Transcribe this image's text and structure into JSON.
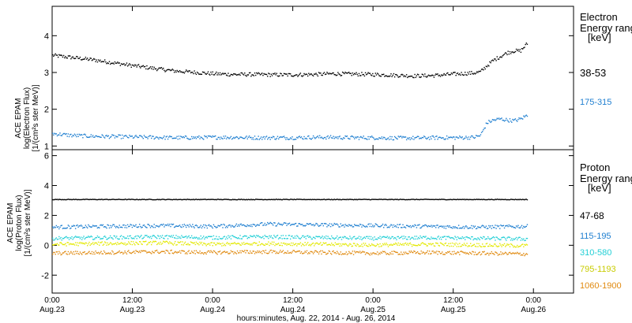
{
  "chart_data": [
    {
      "type": "scatter",
      "ylabel_lines": [
        "ACE EPAM",
        "log(Electron Flux)",
        "[1/(cm²s ster MeV)]"
      ],
      "ylim": [
        0.9,
        4.8
      ],
      "yticks": [
        1,
        2,
        3,
        4
      ],
      "legend_title": [
        "Electron",
        "Energy range",
        "[keV]"
      ],
      "series": [
        {
          "name": "38-53",
          "color": "#000000",
          "x": [
            0,
            3,
            6,
            9,
            12,
            15,
            18,
            21,
            24,
            27,
            30,
            33,
            36,
            39,
            42,
            45,
            48,
            51,
            54,
            57,
            60,
            63,
            64,
            65,
            66,
            67,
            68,
            69,
            70,
            71
          ],
          "y": [
            3.48,
            3.42,
            3.36,
            3.28,
            3.2,
            3.13,
            3.06,
            3.02,
            2.98,
            2.96,
            2.96,
            2.95,
            2.95,
            2.96,
            2.98,
            2.97,
            2.96,
            2.94,
            2.92,
            2.93,
            2.97,
            3.0,
            3.03,
            3.2,
            3.35,
            3.45,
            3.55,
            3.6,
            3.6,
            3.8
          ]
        },
        {
          "name": "175-315",
          "color": "#1f7fd0",
          "x": [
            0,
            3,
            6,
            9,
            12,
            15,
            18,
            21,
            24,
            27,
            30,
            33,
            36,
            39,
            42,
            45,
            48,
            51,
            54,
            57,
            60,
            63,
            64,
            65,
            66,
            67,
            68,
            69,
            70,
            71
          ],
          "y": [
            1.35,
            1.3,
            1.28,
            1.27,
            1.26,
            1.25,
            1.24,
            1.24,
            1.25,
            1.25,
            1.24,
            1.24,
            1.24,
            1.25,
            1.25,
            1.24,
            1.24,
            1.23,
            1.23,
            1.24,
            1.24,
            1.25,
            1.3,
            1.65,
            1.72,
            1.75,
            1.72,
            1.7,
            1.75,
            1.85
          ]
        }
      ]
    },
    {
      "type": "scatter",
      "ylabel_lines": [
        "ACE EPAM",
        "log(Proton Flux)",
        "[1/(cm²s ster MeV)]"
      ],
      "ylim": [
        -3.2,
        6.4
      ],
      "yticks": [
        -2,
        0,
        2,
        4,
        6
      ],
      "legend_title": [
        "Proton",
        "Energy range",
        "[keV]"
      ],
      "series": [
        {
          "name": "47-68",
          "color": "#000000",
          "x": [
            0,
            71
          ],
          "y": [
            3.1,
            3.1
          ]
        },
        {
          "name": "115-195",
          "color": "#1f7fd0",
          "x": [
            0,
            8,
            16,
            24,
            32,
            40,
            48,
            56,
            64,
            71
          ],
          "y": [
            1.25,
            1.3,
            1.35,
            1.3,
            1.45,
            1.4,
            1.35,
            1.3,
            1.25,
            1.3
          ]
        },
        {
          "name": "310-580",
          "color": "#22cfd6",
          "x": [
            0,
            8,
            16,
            24,
            32,
            40,
            48,
            56,
            64,
            71
          ],
          "y": [
            0.5,
            0.55,
            0.6,
            0.55,
            0.6,
            0.55,
            0.5,
            0.55,
            0.5,
            0.45
          ]
        },
        {
          "name": "795-1193",
          "color": "#e3e800",
          "x": [
            0,
            8,
            16,
            24,
            32,
            40,
            48,
            56,
            64,
            71
          ],
          "y": [
            0.1,
            0.15,
            0.2,
            0.1,
            0.15,
            0.1,
            0.05,
            0.1,
            0.05,
            0.0
          ]
        },
        {
          "name": "1060-1900",
          "color": "#e08a10",
          "x": [
            0,
            8,
            16,
            24,
            32,
            40,
            48,
            56,
            64,
            71
          ],
          "y": [
            -0.5,
            -0.45,
            -0.4,
            -0.45,
            -0.4,
            -0.45,
            -0.5,
            -0.45,
            -0.5,
            -0.55
          ]
        }
      ]
    }
  ],
  "x_axis": {
    "xlim": [
      0,
      78
    ],
    "ticks": [
      {
        "x": 0,
        "line1": "0:00",
        "line2": "Aug.23"
      },
      {
        "x": 12,
        "line1": "12:00",
        "line2": "Aug.23"
      },
      {
        "x": 24,
        "line1": "0:00",
        "line2": "Aug.24"
      },
      {
        "x": 36,
        "line1": "12:00",
        "line2": "Aug.24"
      },
      {
        "x": 48,
        "line1": "0:00",
        "line2": "Aug.25"
      },
      {
        "x": 60,
        "line1": "12:00",
        "line2": "Aug.25"
      },
      {
        "x": 72,
        "line1": "0:00",
        "line2": "Aug.26"
      }
    ],
    "label": "hours:minutes, Aug. 22, 2014 - Aug. 26, 2014"
  }
}
